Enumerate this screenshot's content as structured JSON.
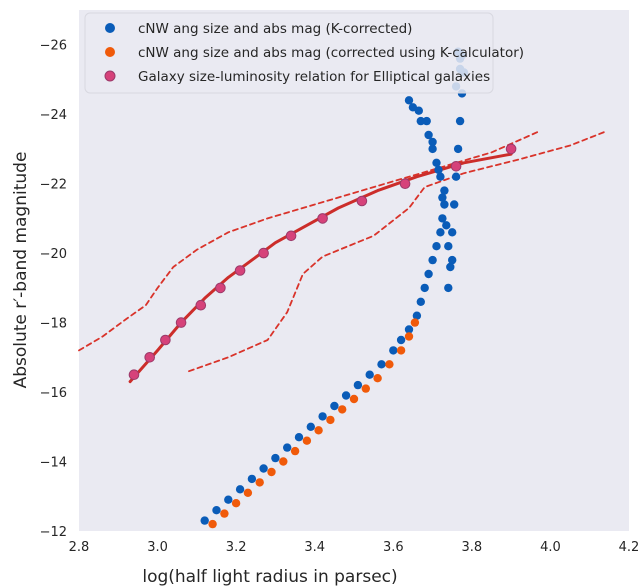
{
  "chart_data": {
    "type": "scatter",
    "xlabel": "log(half light radius in parsec)",
    "ylabel": "Absolute r′-band magnitude",
    "xlim": [
      2.8,
      4.2
    ],
    "ylim": [
      -12,
      -27
    ],
    "xticks": [
      2.8,
      3.0,
      3.2,
      3.4,
      3.6,
      3.8,
      4.0,
      4.2
    ],
    "xtick_labels": [
      "2.8",
      "3.0",
      "3.2",
      "3.4",
      "3.6",
      "3.8",
      "4.0",
      "4.2"
    ],
    "yticks": [
      -12,
      -14,
      -16,
      -18,
      -20,
      -22,
      -24,
      -26
    ],
    "ytick_labels": [
      "−12",
      "−14",
      "−16",
      "−18",
      "−20",
      "−22",
      "−24",
      "−26"
    ],
    "grid": false,
    "background": "#eaeaf2",
    "legend_position": "top-left",
    "series": [
      {
        "name": "cNW ang size and abs mag (K-corrected)",
        "kind": "scatter",
        "color": "#0a5cb8",
        "points": [
          [
            3.12,
            -12.3
          ],
          [
            3.15,
            -12.6
          ],
          [
            3.18,
            -12.9
          ],
          [
            3.21,
            -13.2
          ],
          [
            3.24,
            -13.5
          ],
          [
            3.27,
            -13.8
          ],
          [
            3.3,
            -14.1
          ],
          [
            3.33,
            -14.4
          ],
          [
            3.36,
            -14.7
          ],
          [
            3.39,
            -15.0
          ],
          [
            3.42,
            -15.3
          ],
          [
            3.45,
            -15.6
          ],
          [
            3.48,
            -15.9
          ],
          [
            3.51,
            -16.2
          ],
          [
            3.54,
            -16.5
          ],
          [
            3.57,
            -16.8
          ],
          [
            3.6,
            -17.2
          ],
          [
            3.62,
            -17.5
          ],
          [
            3.64,
            -17.8
          ],
          [
            3.66,
            -18.2
          ],
          [
            3.67,
            -18.6
          ],
          [
            3.68,
            -19.0
          ],
          [
            3.69,
            -19.4
          ],
          [
            3.7,
            -19.8
          ],
          [
            3.71,
            -20.2
          ],
          [
            3.72,
            -20.6
          ],
          [
            3.725,
            -21.0
          ],
          [
            3.73,
            -21.4
          ],
          [
            3.73,
            -21.8
          ],
          [
            3.72,
            -22.2
          ],
          [
            3.71,
            -22.6
          ],
          [
            3.7,
            -23.0
          ],
          [
            3.69,
            -23.4
          ],
          [
            3.67,
            -23.8
          ],
          [
            3.65,
            -24.2
          ],
          [
            3.64,
            -24.4
          ],
          [
            3.74,
            -19.0
          ],
          [
            3.75,
            -19.8
          ],
          [
            3.75,
            -20.6
          ],
          [
            3.755,
            -21.4
          ],
          [
            3.76,
            -22.2
          ],
          [
            3.765,
            -23.0
          ],
          [
            3.77,
            -23.8
          ],
          [
            3.775,
            -24.6
          ],
          [
            3.78,
            -25.2
          ],
          [
            3.77,
            -25.6
          ],
          [
            3.765,
            -25.8
          ],
          [
            3.745,
            -19.6
          ],
          [
            3.74,
            -20.2
          ],
          [
            3.735,
            -20.8
          ],
          [
            3.725,
            -21.6
          ],
          [
            3.715,
            -22.4
          ],
          [
            3.7,
            -23.2
          ],
          [
            3.685,
            -23.8
          ],
          [
            3.665,
            -24.1
          ],
          [
            3.76,
            -24.8
          ],
          [
            3.77,
            -25.3
          ],
          [
            3.775,
            -25.7
          ]
        ]
      },
      {
        "name": "cNW ang size and abs mag (corrected using K-calculator)",
        "kind": "scatter",
        "color": "#f05a0a",
        "points": [
          [
            3.14,
            -12.2
          ],
          [
            3.17,
            -12.5
          ],
          [
            3.2,
            -12.8
          ],
          [
            3.23,
            -13.1
          ],
          [
            3.26,
            -13.4
          ],
          [
            3.29,
            -13.7
          ],
          [
            3.32,
            -14.0
          ],
          [
            3.35,
            -14.3
          ],
          [
            3.38,
            -14.6
          ],
          [
            3.41,
            -14.9
          ],
          [
            3.44,
            -15.2
          ],
          [
            3.47,
            -15.5
          ],
          [
            3.5,
            -15.8
          ],
          [
            3.53,
            -16.1
          ],
          [
            3.56,
            -16.4
          ],
          [
            3.59,
            -16.8
          ],
          [
            3.62,
            -17.2
          ],
          [
            3.64,
            -17.6
          ],
          [
            3.655,
            -18.0
          ]
        ]
      },
      {
        "name": "Galaxy size-luminosity relation for Elliptical galaxies",
        "kind": "scatter",
        "color": "#d6427a",
        "points": [
          [
            2.94,
            -16.5
          ],
          [
            2.98,
            -17.0
          ],
          [
            3.02,
            -17.5
          ],
          [
            3.06,
            -18.0
          ],
          [
            3.11,
            -18.5
          ],
          [
            3.16,
            -19.0
          ],
          [
            3.21,
            -19.5
          ],
          [
            3.27,
            -20.0
          ],
          [
            3.34,
            -20.5
          ],
          [
            3.42,
            -21.0
          ],
          [
            3.52,
            -21.5
          ],
          [
            3.63,
            -22.0
          ],
          [
            3.76,
            -22.5
          ],
          [
            3.9,
            -23.0
          ]
        ]
      }
    ],
    "fit_line": {
      "color": "#cc2d2a",
      "style": "solid",
      "points": [
        [
          2.93,
          -16.3
        ],
        [
          3.0,
          -17.2
        ],
        [
          3.06,
          -18.0
        ],
        [
          3.12,
          -18.7
        ],
        [
          3.18,
          -19.3
        ],
        [
          3.24,
          -19.8
        ],
        [
          3.3,
          -20.3
        ],
        [
          3.38,
          -20.8
        ],
        [
          3.46,
          -21.3
        ],
        [
          3.56,
          -21.8
        ],
        [
          3.66,
          -22.2
        ],
        [
          3.78,
          -22.6
        ],
        [
          3.9,
          -22.85
        ]
      ]
    },
    "bound_lines": [
      {
        "color": "#d9332a",
        "style": "dashed",
        "points": [
          [
            2.8,
            -17.2
          ],
          [
            2.86,
            -17.6
          ],
          [
            2.92,
            -18.1
          ],
          [
            2.97,
            -18.5
          ],
          [
            3.0,
            -19.0
          ],
          [
            3.04,
            -19.6
          ],
          [
            3.1,
            -20.1
          ],
          [
            3.18,
            -20.6
          ],
          [
            3.28,
            -21.0
          ],
          [
            3.4,
            -21.4
          ],
          [
            3.55,
            -21.9
          ],
          [
            3.7,
            -22.4
          ],
          [
            3.85,
            -22.9
          ],
          [
            3.97,
            -23.5
          ]
        ]
      },
      {
        "color": "#d9332a",
        "style": "dashed",
        "points": [
          [
            3.08,
            -16.6
          ],
          [
            3.18,
            -17.0
          ],
          [
            3.28,
            -17.5
          ],
          [
            3.33,
            -18.3
          ],
          [
            3.37,
            -19.4
          ],
          [
            3.42,
            -19.9
          ],
          [
            3.55,
            -20.5
          ],
          [
            3.64,
            -21.3
          ],
          [
            3.68,
            -21.9
          ],
          [
            3.78,
            -22.3
          ],
          [
            3.92,
            -22.7
          ],
          [
            4.05,
            -23.1
          ],
          [
            4.14,
            -23.5
          ]
        ]
      }
    ]
  }
}
